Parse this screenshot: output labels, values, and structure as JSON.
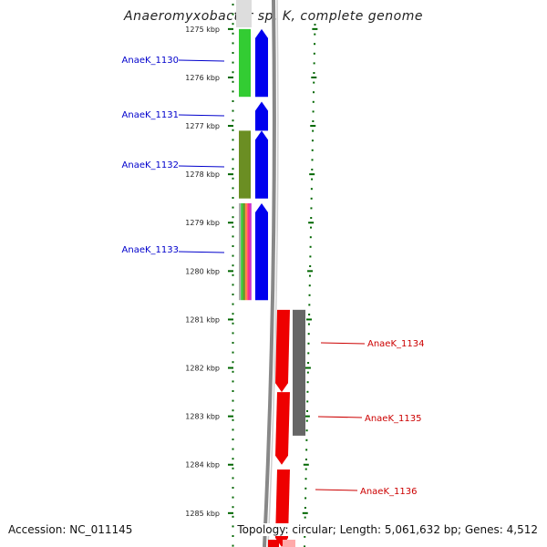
{
  "title": "Anaeromyxobacter sp. K, complete genome",
  "accession_text": "Accession: NC_011145",
  "topology_text": "Topology: circular; Length: 5,061,632 bp; Genes: 4,512",
  "colors": {
    "label_blue": "#0000cc",
    "label_red": "#cc0000",
    "tick_green": "#006600",
    "gene_green": "#33cc33",
    "gene_olive": "#6b8e23",
    "gene_blue": "#0000ee",
    "gene_red": "#ee0000",
    "gene_grey": "#666666",
    "backbone": "#888888"
  },
  "scale": {
    "start_kbp": 1274.4,
    "end_kbp": 1285.7,
    "tick_labels": [
      "1275 kbp",
      "1276 kbp",
      "1277 kbp",
      "1278 kbp",
      "1279 kbp",
      "1280 kbp",
      "1281 kbp",
      "1282 kbp",
      "1283 kbp",
      "1284 kbp",
      "1285 kbp"
    ]
  },
  "genes": [
    {
      "name": "AnaeK_1130",
      "strand": "left",
      "start_kbp": 1275.0,
      "end_kbp": 1276.4,
      "track": "gene_blue",
      "annot": "gene_green"
    },
    {
      "name": "AnaeK_1131",
      "strand": "left",
      "start_kbp": 1276.5,
      "end_kbp": 1277.1,
      "track": "gene_blue"
    },
    {
      "name": "AnaeK_1132",
      "strand": "left",
      "start_kbp": 1277.1,
      "end_kbp": 1278.5,
      "track": "gene_blue",
      "annot": "gene_olive"
    },
    {
      "name": "AnaeK_1133",
      "strand": "left",
      "start_kbp": 1278.6,
      "end_kbp": 1280.6,
      "track": "gene_blue",
      "annot": "multi"
    },
    {
      "name": "AnaeK_1134",
      "strand": "right",
      "start_kbp": 1280.8,
      "end_kbp": 1282.5,
      "track": "gene_red",
      "annot": "gene_grey"
    },
    {
      "name": "AnaeK_1135",
      "strand": "right",
      "start_kbp": 1282.5,
      "end_kbp": 1284.0,
      "track": "gene_red"
    },
    {
      "name": "AnaeK_1136",
      "strand": "right",
      "start_kbp": 1284.1,
      "end_kbp": 1285.7,
      "track": "gene_red"
    }
  ]
}
